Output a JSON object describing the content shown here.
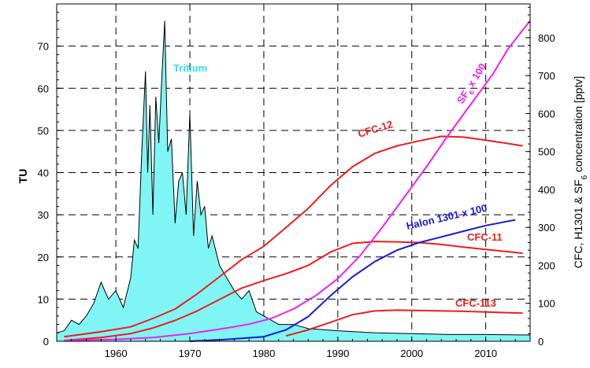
{
  "chart_data": {
    "type": "line",
    "title": "",
    "xlabel": "",
    "ylabel_left": "TU",
    "ylabel_right": "CFC, H1301 & SF",
    "ylabel_right_sub": "6",
    "ylabel_right_tail": " concentration [pptv]",
    "xlim": [
      1952,
      2016
    ],
    "ylim_left": [
      0,
      80
    ],
    "ylim_right": [
      0,
      888.9
    ],
    "x_ticks": [
      "1960",
      "1970",
      "1980",
      "1990",
      "2000",
      "2010"
    ],
    "y_ticks_left": [
      "0",
      "10",
      "20",
      "30",
      "40",
      "50",
      "60",
      "70"
    ],
    "y_ticks_right": [
      "0",
      "100",
      "200",
      "300",
      "400",
      "500",
      "600",
      "700",
      "800"
    ],
    "grid": true,
    "colors": {
      "tritium_fill": "#80f5f5",
      "tritium_line": "#000000",
      "tritium_label": "#33e0e8",
      "cfc": "#ee1c1c",
      "sf6": "#ee22ee",
      "halon": "#1a1ad6"
    },
    "annotations": {
      "tritium": "Tritium",
      "cfc12": "CFC-12",
      "sf6_main": "SF",
      "sf6_sub": "6",
      "sf6_tail": " x 100",
      "halon": "Halon 1301 x 100",
      "cfc11": "CFC-11",
      "cfc113": "CFC-113"
    },
    "series": [
      {
        "name": "Tritium",
        "axis": "left",
        "x": [
          1952,
          1953,
          1954,
          1955,
          1956,
          1957,
          1958,
          1959,
          1960,
          1961,
          1962,
          1962.5,
          1963,
          1963.5,
          1964,
          1964.3,
          1964.6,
          1965,
          1965.4,
          1965.8,
          1966.2,
          1966.6,
          1967,
          1967.5,
          1968,
          1968.5,
          1969,
          1969.5,
          1970,
          1970.5,
          1971,
          1971.5,
          1972,
          1972.5,
          1973,
          1974,
          1975,
          1976,
          1977,
          1978,
          1979,
          1980,
          1981,
          1982,
          1983,
          1984,
          1985,
          1986,
          1990,
          1995,
          2000,
          2005,
          2010,
          2016
        ],
        "values": [
          2,
          2.5,
          5,
          4,
          6,
          9,
          14,
          10,
          12,
          8,
          15,
          24,
          22,
          45,
          64,
          40,
          56,
          30,
          58,
          47,
          62,
          76,
          45,
          48,
          28,
          38,
          40,
          30,
          54,
          25,
          38,
          30,
          32,
          22,
          25,
          18,
          15,
          12,
          10,
          12,
          7,
          6,
          5,
          4,
          4,
          4,
          3.5,
          3,
          2.5,
          2,
          1.8,
          1.6,
          1.6,
          1.5
        ]
      },
      {
        "name": "CFC-12",
        "axis": "right",
        "x": [
          1953,
          1958,
          1962,
          1965,
          1968,
          1971,
          1974,
          1977,
          1980,
          1983,
          1986,
          1989,
          1992,
          1995,
          1998,
          2001,
          2004,
          2007,
          2010,
          2015
        ],
        "values": [
          12,
          25,
          38,
          60,
          85,
          125,
          170,
          215,
          250,
          300,
          350,
          410,
          460,
          495,
          515,
          528,
          540,
          538,
          530,
          515
        ]
      },
      {
        "name": "CFC-11",
        "axis": "right",
        "x": [
          1953,
          1958,
          1962,
          1965,
          1968,
          1971,
          1974,
          1977,
          1980,
          1983,
          1986,
          1989,
          1992,
          1995,
          1998,
          2001,
          2004,
          2007,
          2010,
          2015
        ],
        "values": [
          2,
          10,
          20,
          35,
          55,
          80,
          110,
          140,
          160,
          178,
          200,
          235,
          258,
          263,
          262,
          260,
          255,
          248,
          242,
          232
        ]
      },
      {
        "name": "CFC-113",
        "axis": "right",
        "x": [
          1983,
          1986,
          1989,
          1992,
          1995,
          1998,
          2001,
          2004,
          2007,
          2010,
          2015
        ],
        "values": [
          14,
          30,
          50,
          70,
          80,
          82,
          81,
          80,
          79,
          77,
          74
        ]
      },
      {
        "name": "SF6 x 100",
        "axis": "right",
        "x": [
          1953,
          1960,
          1965,
          1970,
          1975,
          1978,
          1981,
          1984,
          1987,
          1990,
          1993,
          1996,
          1999,
          2002,
          2005,
          2008,
          2011,
          2013,
          2016
        ],
        "values": [
          2,
          5,
          10,
          20,
          35,
          45,
          60,
          85,
          120,
          165,
          225,
          300,
          380,
          460,
          545,
          625,
          705,
          770,
          845
        ]
      },
      {
        "name": "Halon 1301 x 100",
        "axis": "right",
        "x": [
          1970,
          1975,
          1980,
          1983,
          1986,
          1989,
          1992,
          1995,
          1998,
          2001,
          2004,
          2007,
          2010,
          2014
        ],
        "values": [
          0,
          5,
          12,
          30,
          65,
          120,
          170,
          210,
          240,
          260,
          275,
          290,
          305,
          320
        ]
      }
    ]
  }
}
